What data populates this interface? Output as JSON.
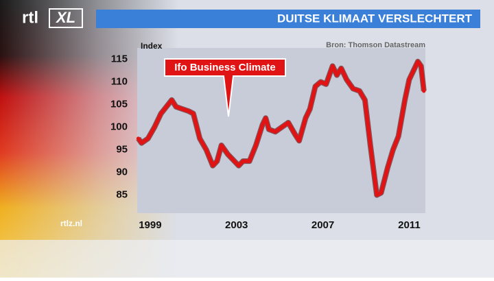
{
  "logo": [
    "rtl",
    "XL"
  ],
  "site": "rtlz.nl",
  "chart_data": {
    "type": "line",
    "title": "DUITSE KLIMAAT VERSLECHTERT",
    "y_label": "Index",
    "source": "Bron: Thomson Datastream",
    "annotation": "Ifo Business Climate",
    "color": "#e01414",
    "grid": false,
    "x": [
      1998.45,
      1998.6,
      1998.9,
      1999.2,
      1999.5,
      1999.75,
      2000.0,
      2000.2,
      2000.5,
      2000.8,
      2001.0,
      2001.3,
      2001.6,
      2001.9,
      2002.1,
      2002.3,
      2002.6,
      2002.9,
      2003.1,
      2003.3,
      2003.6,
      2003.9,
      2004.2,
      2004.35,
      2004.5,
      2004.8,
      2005.1,
      2005.4,
      2005.7,
      2005.9,
      2006.2,
      2006.4,
      2006.65,
      2006.9,
      2007.15,
      2007.45,
      2007.65,
      2007.85,
      2008.1,
      2008.4,
      2008.7,
      2008.95,
      2009.2,
      2009.5,
      2009.7,
      2010.0,
      2010.25,
      2010.5,
      2010.8,
      2011.0,
      2011.2,
      2011.4,
      2011.55,
      2011.68
    ],
    "values": [
      97.5,
      96.5,
      97.5,
      100,
      103,
      104.5,
      106,
      104.5,
      104,
      103.5,
      103,
      97.5,
      95,
      91.5,
      92.5,
      96,
      94,
      92.5,
      91.5,
      92.5,
      92.5,
      96,
      100.5,
      102,
      99.5,
      99,
      100,
      101,
      98.5,
      97,
      102,
      104,
      109,
      110,
      109.5,
      113.5,
      111.5,
      113,
      110.5,
      108.5,
      108,
      106,
      96,
      85,
      85.5,
      91,
      95,
      98,
      106,
      110.5,
      112.5,
      114.5,
      113.5,
      108
    ],
    "xlim": [
      1998.4,
      2011.75
    ],
    "xticks": [
      1999,
      2003,
      2007,
      2011
    ],
    "ylim": [
      81,
      117.5
    ],
    "yticks": [
      85,
      90,
      95,
      100,
      105,
      110,
      115
    ]
  }
}
